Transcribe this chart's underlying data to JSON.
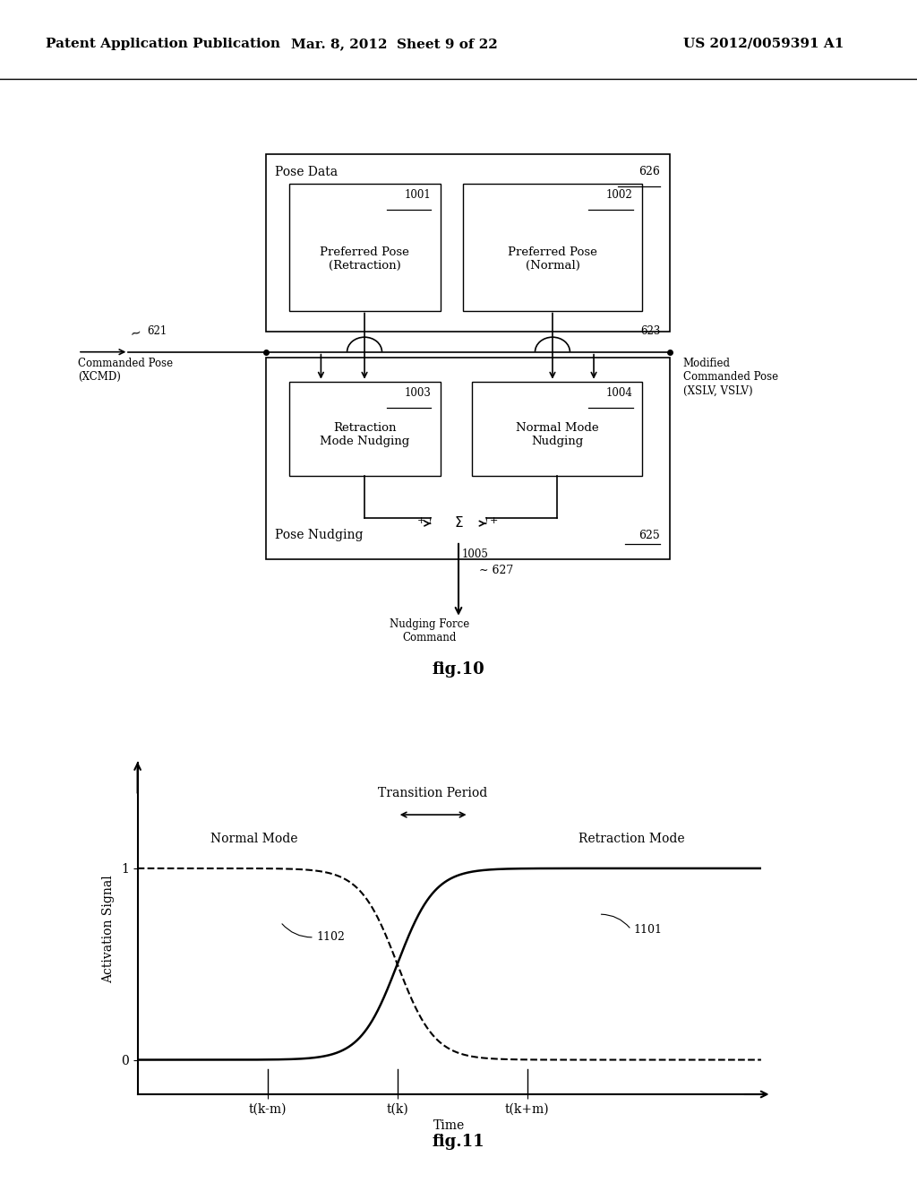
{
  "background_color": "#ffffff",
  "header_left": "Patent Application Publication",
  "header_center": "Mar. 8, 2012  Sheet 9 of 22",
  "header_right": "US 2012/0059391 A1",
  "fig10_label": "fig.10",
  "fig11_label": "fig.11",
  "graph": {
    "ylabel": "Activation Signal",
    "xlabel": "Time",
    "yticks": [
      0,
      1
    ],
    "xtick_labels": [
      "t(k-m)",
      "t(k)",
      "t(k+m)"
    ],
    "normal_mode_label": "Normal Mode",
    "retraction_mode_label": "Retraction Mode",
    "ref_1101": "1101",
    "ref_1102": "1102",
    "transition_label": "Transition Period"
  }
}
